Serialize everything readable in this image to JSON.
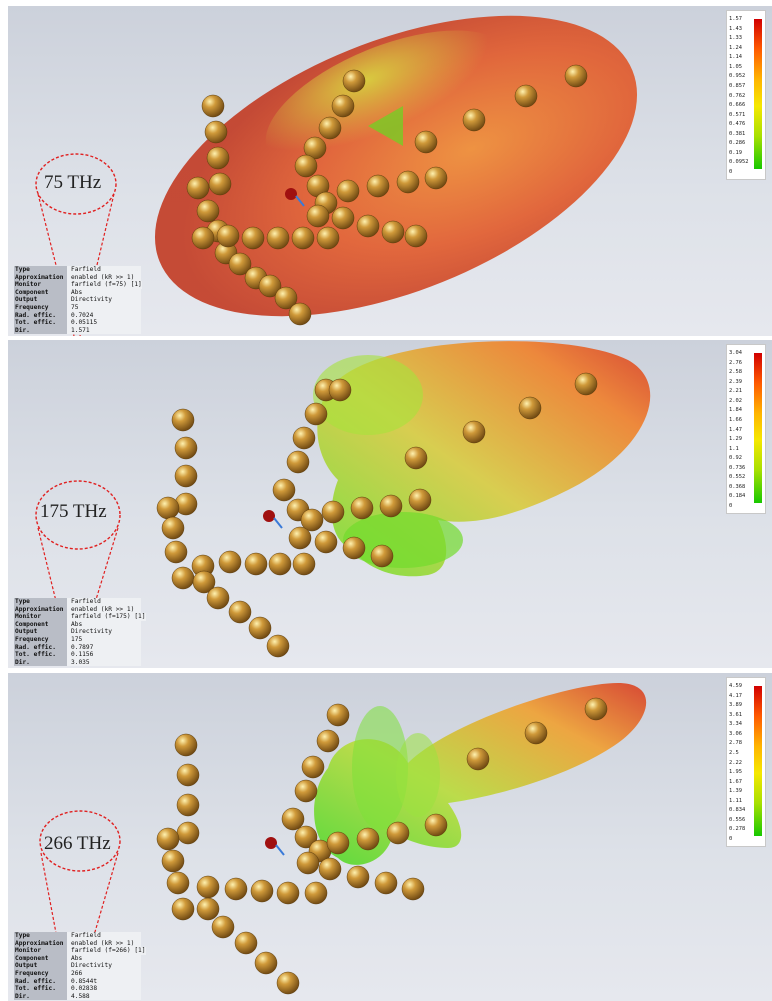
{
  "panels": [
    {
      "freq_label": "75 THz",
      "info": [
        [
          "Type",
          "Farfield"
        ],
        [
          "Approximation",
          "enabled (kR >> 1)"
        ],
        [
          "Monitor",
          "farfield (f=75) [1]"
        ],
        [
          "Component",
          "Abs"
        ],
        [
          "Output",
          "Directivity"
        ],
        [
          "Frequency",
          "75"
        ],
        [
          "Rad. effic.",
          "0.7024"
        ],
        [
          "Tot. effic.",
          "0.05115"
        ],
        [
          "Dir.",
          "1.571"
        ]
      ],
      "scale": [
        "1.57",
        "1.43",
        "1.33",
        "1.24",
        "1.14",
        "1.05",
        "0.952",
        "0.857",
        "0.762",
        "0.666",
        "0.571",
        "0.476",
        "0.381",
        "0.286",
        "0.19",
        "0.0952",
        "0"
      ]
    },
    {
      "freq_label": "175 THz",
      "info": [
        [
          "Type",
          "Farfield"
        ],
        [
          "Approximation",
          "enabled (kR >> 1)"
        ],
        [
          "Monitor",
          "farfield (f=175) [1]"
        ],
        [
          "Component",
          "Abs"
        ],
        [
          "Output",
          "Directivity"
        ],
        [
          "Frequency",
          "175"
        ],
        [
          "Rad. effic.",
          "0.7897"
        ],
        [
          "Tot. effic.",
          "0.1156"
        ],
        [
          "Dir.",
          "3.035"
        ]
      ],
      "scale": [
        "3.04",
        "2.76",
        "2.58",
        "2.39",
        "2.21",
        "2.02",
        "1.84",
        "1.66",
        "1.47",
        "1.29",
        "1.1",
        "0.92",
        "0.736",
        "0.552",
        "0.368",
        "0.184",
        "0"
      ]
    },
    {
      "freq_label": "266 THz",
      "info": [
        [
          "Type",
          "Farfield"
        ],
        [
          "Approximation",
          "enabled (kR >> 1)"
        ],
        [
          "Monitor",
          "farfield (f=266) [1]"
        ],
        [
          "Component",
          "Abs"
        ],
        [
          "Output",
          "Directivity"
        ],
        [
          "Frequency",
          "266"
        ],
        [
          "Rad. effic.",
          "0.8544t"
        ],
        [
          "Tot. effic.",
          "0.02838"
        ],
        [
          "Dir.",
          "4.588"
        ]
      ],
      "scale": [
        "4.59",
        "4.17",
        "3.89",
        "3.61",
        "3.34",
        "3.06",
        "2.78",
        "2.5",
        "2.22",
        "1.95",
        "1.67",
        "1.39",
        "1.11",
        "0.834",
        "0.556",
        "0.278",
        "0"
      ]
    }
  ]
}
